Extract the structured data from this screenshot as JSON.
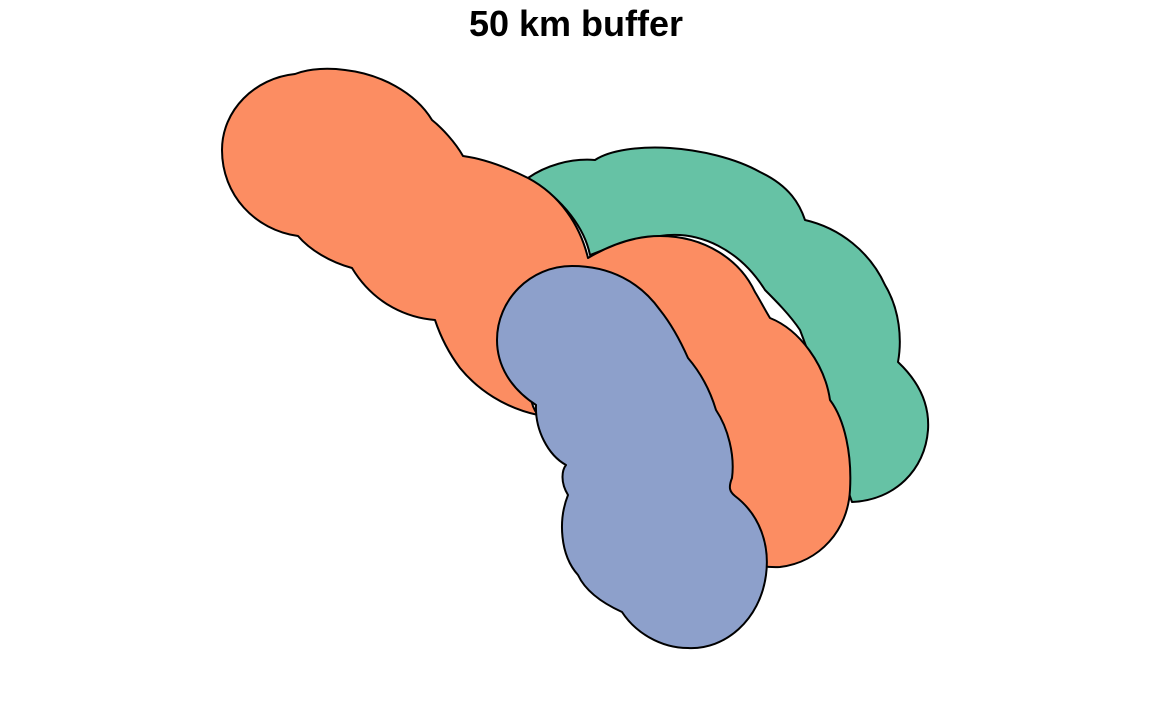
{
  "map": {
    "title": "50 km buffer",
    "polygons": [
      {
        "id": "buffer-a",
        "fill": "#66C2A5"
      },
      {
        "id": "buffer-b",
        "fill": "#FC8D62"
      },
      {
        "id": "buffer-c",
        "fill": "#8DA0CB"
      }
    ]
  }
}
